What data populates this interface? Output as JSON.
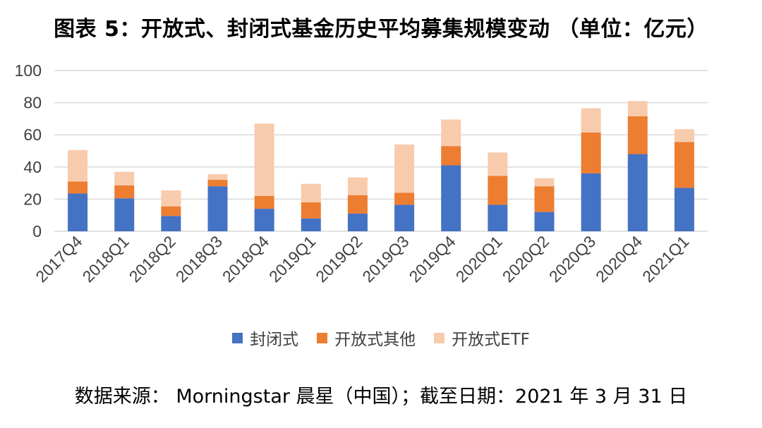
{
  "title": "图表 5：开放式、封闭式基金历史平均募集规模变动 （单位：亿元）",
  "source": "数据来源： Morningstar 晨星（中国）；截至日期：2021 年 3 月 31 日",
  "colors": {
    "closed": "#4472C4",
    "open_other": "#ED7D31",
    "open_etf": "#F8CBAD",
    "grid": "#D9D9D9"
  },
  "chart_data": {
    "type": "bar",
    "stacked": true,
    "categories": [
      "2017Q4",
      "2018Q1",
      "2018Q2",
      "2018Q3",
      "2018Q4",
      "2019Q1",
      "2019Q2",
      "2019Q3",
      "2019Q4",
      "2020Q1",
      "2020Q2",
      "2020Q3",
      "2020Q4",
      "2021Q1"
    ],
    "series": [
      {
        "name": "封闭式",
        "values": [
          23.5,
          20.5,
          9.5,
          28,
          14,
          8,
          11,
          16.5,
          41,
          16.5,
          12,
          36,
          48,
          27
        ]
      },
      {
        "name": "开放式其他",
        "values": [
          7.5,
          8,
          6,
          4,
          8,
          10,
          11.5,
          7.5,
          12,
          18,
          16,
          25.5,
          23.5,
          28.5
        ]
      },
      {
        "name": "开放式ETF",
        "values": [
          19.5,
          8.5,
          10,
          3.5,
          45,
          11.5,
          11,
          30,
          16.5,
          14.5,
          5,
          15,
          9.5,
          8
        ]
      }
    ],
    "ylim": [
      0,
      100
    ],
    "yticks": [
      0,
      20,
      40,
      60,
      80,
      100
    ],
    "grid": true,
    "legend_position": "bottom",
    "xlabel": "",
    "ylabel": ""
  }
}
